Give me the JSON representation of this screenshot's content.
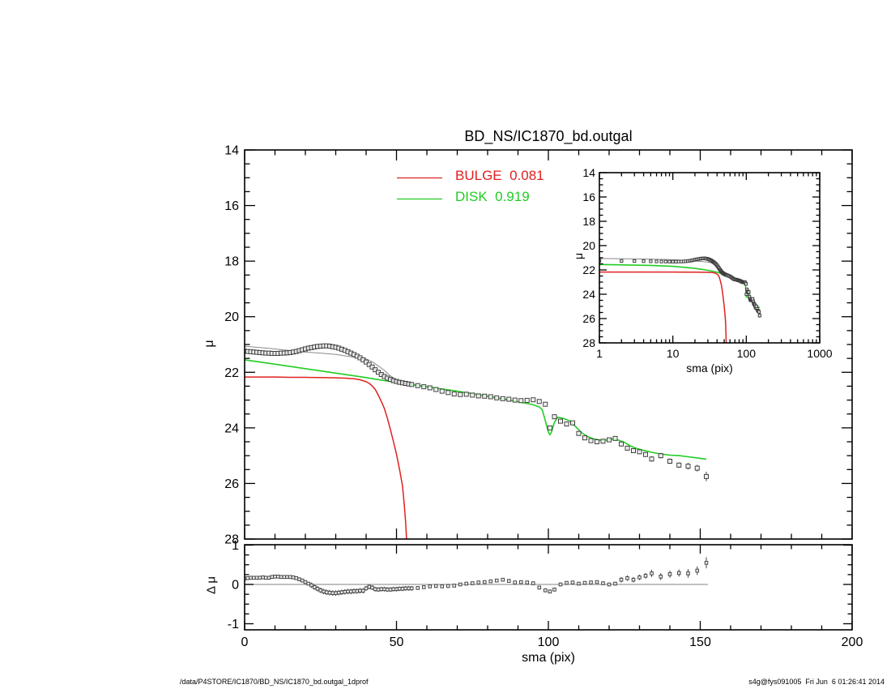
{
  "title": "BD_NS/IC1870_bd.outgal",
  "legend": {
    "bulge_label": "BULGE  0.081",
    "disk_label": "DISK  0.919"
  },
  "axes": {
    "main_ylabel": "μ",
    "residual_ylabel": "Δ μ",
    "xlabel": "sma (pix)",
    "inset_xlabel": "sma (pix)",
    "inset_ylabel": "μ"
  },
  "footer": {
    "left": "/data/P4STORE/IC1870/BD_NS/IC1870_bd.outgal_1dprof",
    "right": "s4g@fys091005  Fri Jun  6 01:26:41 2014"
  },
  "colors": {
    "bulge": "#e02020",
    "disk": "#22cc22",
    "total_model": "#8a8a8a",
    "data": "#3d3d3d",
    "zero_line": "#9a9a9a",
    "axis": "#000000"
  },
  "chart_data": [
    {
      "id": "main_profile",
      "type": "scatter",
      "title": "BD_NS/IC1870_bd.outgal",
      "xlabel": "",
      "ylabel": "μ",
      "xlim": [
        0,
        200
      ],
      "ylim": [
        28,
        14
      ],
      "y_inverted": true,
      "grid": false,
      "x_major_ticks": [
        0,
        50,
        100,
        150,
        200
      ],
      "x_minor_step": 10,
      "x_tick_labels_visible": false,
      "y_major_ticks": [
        14,
        16,
        18,
        20,
        22,
        24,
        26,
        28
      ],
      "y_minor_step": 0.5,
      "legend": {
        "position": "top-left-inside",
        "entries": [
          {
            "label": "BULGE  0.081",
            "color": "#e02020"
          },
          {
            "label": "DISK  0.919",
            "color": "#22cc22"
          }
        ]
      },
      "series": [
        {
          "name": "total_model",
          "kind": "line",
          "color": "#8a8a8a",
          "width": 1,
          "x": [
            0,
            5,
            10,
            15,
            20,
            25,
            30,
            35,
            40,
            42,
            44,
            46,
            48,
            50,
            52,
            55,
            60
          ],
          "y": [
            21.06,
            21.11,
            21.16,
            21.22,
            21.27,
            21.31,
            21.36,
            21.44,
            21.52,
            21.62,
            21.77,
            21.93,
            22.13,
            22.27,
            22.36,
            22.45,
            22.52
          ]
        },
        {
          "name": "disk",
          "kind": "line",
          "color": "#22cc22",
          "width": 1.6,
          "x": [
            0,
            5,
            10,
            15,
            20,
            25,
            30,
            35,
            40,
            45,
            50,
            55,
            60,
            65,
            70,
            75,
            80,
            85,
            90,
            93,
            95,
            97,
            98,
            99,
            100,
            100.5,
            101,
            102,
            103,
            105,
            107,
            109,
            111,
            113,
            115,
            117,
            119,
            121,
            123,
            125,
            127,
            129,
            131,
            134,
            137,
            140,
            143,
            146,
            149,
            152
          ],
          "y": [
            21.55,
            21.63,
            21.71,
            21.79,
            21.87,
            21.95,
            22.03,
            22.11,
            22.19,
            22.28,
            22.36,
            22.44,
            22.52,
            22.6,
            22.68,
            22.77,
            22.86,
            22.96,
            23.06,
            23.12,
            23.17,
            23.25,
            23.35,
            23.75,
            24.15,
            24.25,
            24.15,
            23.8,
            23.62,
            23.66,
            23.75,
            23.96,
            24.18,
            24.32,
            24.4,
            24.44,
            24.44,
            24.4,
            24.44,
            24.52,
            24.65,
            24.74,
            24.8,
            24.88,
            24.94,
            24.98,
            25.0,
            25.04,
            25.08,
            25.13
          ]
        },
        {
          "name": "bulge",
          "kind": "line",
          "color": "#e02020",
          "width": 1.5,
          "x": [
            0,
            5,
            10,
            15,
            20,
            25,
            30,
            33,
            36,
            38,
            40,
            41,
            42,
            43,
            44,
            45,
            46,
            47,
            48,
            49,
            50,
            51,
            52,
            52.5,
            53,
            53.4
          ],
          "y": [
            22.17,
            22.17,
            22.17,
            22.18,
            22.18,
            22.19,
            22.2,
            22.21,
            22.23,
            22.27,
            22.34,
            22.4,
            22.49,
            22.62,
            22.82,
            23.05,
            23.3,
            23.66,
            24.06,
            24.5,
            24.95,
            25.5,
            26.1,
            26.7,
            27.4,
            28.2
          ]
        },
        {
          "name": "observed",
          "kind": "scatter",
          "marker": "open-square",
          "color": "#3d3d3d",
          "x": [
            0,
            1,
            2,
            3,
            4,
            5,
            6,
            7,
            8,
            9,
            10,
            11,
            12,
            13,
            14,
            15,
            16,
            17,
            18,
            19,
            20,
            21,
            22,
            23,
            24,
            25,
            26,
            27,
            28,
            29,
            30,
            31,
            32,
            33,
            34,
            35,
            36,
            37,
            38,
            39,
            40,
            41,
            42,
            43,
            44,
            45,
            46,
            47,
            48,
            49,
            50,
            51,
            52,
            53,
            54,
            55,
            57,
            59,
            61,
            63,
            65,
            67,
            69,
            71,
            73,
            75,
            77,
            79,
            81,
            83,
            85,
            87,
            89,
            91,
            93,
            95,
            97,
            99,
            100.5,
            102,
            104,
            106,
            108,
            110,
            112,
            114,
            116,
            118,
            120,
            122,
            124,
            126,
            128,
            130,
            132,
            134,
            137,
            140,
            143,
            146,
            149,
            152
          ],
          "y": [
            21.24,
            21.25,
            21.26,
            21.27,
            21.28,
            21.29,
            21.3,
            21.31,
            21.31,
            21.32,
            21.32,
            21.32,
            21.31,
            21.31,
            21.3,
            21.29,
            21.27,
            21.25,
            21.22,
            21.19,
            21.16,
            21.13,
            21.11,
            21.09,
            21.07,
            21.06,
            21.05,
            21.05,
            21.06,
            21.08,
            21.1,
            21.13,
            21.17,
            21.21,
            21.26,
            21.31,
            21.36,
            21.42,
            21.48,
            21.55,
            21.63,
            21.72,
            21.81,
            21.91,
            22.0,
            22.08,
            22.15,
            22.21,
            22.26,
            22.3,
            22.33,
            22.36,
            22.38,
            22.4,
            22.42,
            22.44,
            22.48,
            22.52,
            22.56,
            22.62,
            22.68,
            22.73,
            22.78,
            22.8,
            22.79,
            22.82,
            22.85,
            22.86,
            22.88,
            22.92,
            22.95,
            22.97,
            23.0,
            23.02,
            23.01,
            22.99,
            23.05,
            23.15,
            24.0,
            23.6,
            23.76,
            23.86,
            23.82,
            24.2,
            24.36,
            24.46,
            24.5,
            24.48,
            24.43,
            24.38,
            24.58,
            24.73,
            24.82,
            24.86,
            24.96,
            25.12,
            25.0,
            25.2,
            25.34,
            25.38,
            25.45,
            25.75
          ],
          "yerr": [
            0.02,
            0.02,
            0.02,
            0.02,
            0.02,
            0.02,
            0.02,
            0.02,
            0.02,
            0.02,
            0.02,
            0.02,
            0.02,
            0.02,
            0.02,
            0.02,
            0.02,
            0.02,
            0.02,
            0.02,
            0.02,
            0.02,
            0.02,
            0.02,
            0.02,
            0.02,
            0.02,
            0.02,
            0.02,
            0.02,
            0.02,
            0.02,
            0.02,
            0.02,
            0.02,
            0.02,
            0.02,
            0.02,
            0.02,
            0.02,
            0.05,
            0.05,
            0.05,
            0.05,
            0.05,
            0.05,
            0.05,
            0.05,
            0.05,
            0.05,
            0.05,
            0.05,
            0.05,
            0.05,
            0.05,
            0.05,
            0.03,
            0.03,
            0.03,
            0.03,
            0.03,
            0.03,
            0.03,
            0.03,
            0.03,
            0.03,
            0.03,
            0.03,
            0.03,
            0.03,
            0.03,
            0.03,
            0.03,
            0.03,
            0.03,
            0.03,
            0.04,
            0.04,
            0.04,
            0.04,
            0.04,
            0.04,
            0.04,
            0.04,
            0.04,
            0.04,
            0.04,
            0.04,
            0.04,
            0.04,
            0.07,
            0.07,
            0.07,
            0.07,
            0.07,
            0.1,
            0.1,
            0.1,
            0.1,
            0.12,
            0.12,
            0.17
          ]
        }
      ]
    },
    {
      "id": "inset_log_profile",
      "type": "scatter",
      "xscale": "log",
      "xlabel": "sma (pix)",
      "ylabel": "μ",
      "xlim": [
        1,
        1000
      ],
      "ylim": [
        28,
        14
      ],
      "y_inverted": true,
      "x_major_ticks": [
        1,
        10,
        100,
        1000
      ],
      "y_major_ticks": [
        14,
        16,
        18,
        20,
        22,
        24,
        26,
        28
      ],
      "y_minor_step": 0.5,
      "series_ref": "main_profile"
    },
    {
      "id": "residuals",
      "type": "scatter",
      "xlabel": "sma (pix)",
      "ylabel": "Δ μ",
      "xlim": [
        0,
        200
      ],
      "ylim": [
        -1,
        1
      ],
      "x_major_ticks": [
        0,
        50,
        100,
        150,
        200
      ],
      "x_minor_step": 10,
      "y_major_ticks": [
        -1,
        0,
        1
      ],
      "y_minor_step": 0.25,
      "zero_line": {
        "x_start": 0,
        "x_end": 152.5,
        "color": "#9a9a9a"
      },
      "series": [
        {
          "name": "residual",
          "kind": "scatter",
          "marker": "open-square",
          "color": "#444444",
          "x": [
            0,
            1,
            2,
            3,
            4,
            5,
            6,
            7,
            8,
            9,
            10,
            11,
            12,
            13,
            14,
            15,
            16,
            17,
            18,
            19,
            20,
            21,
            22,
            23,
            24,
            25,
            26,
            27,
            28,
            29,
            30,
            31,
            32,
            33,
            34,
            35,
            36,
            37,
            38,
            39,
            40,
            41,
            42,
            43,
            44,
            45,
            46,
            47,
            48,
            49,
            50,
            51,
            52,
            53,
            54,
            55,
            57,
            59,
            61,
            63,
            65,
            67,
            69,
            71,
            73,
            75,
            77,
            79,
            81,
            83,
            85,
            87,
            89,
            91,
            93,
            95,
            97,
            99,
            100.5,
            102,
            104,
            106,
            108,
            110,
            112,
            114,
            116,
            118,
            120,
            122,
            124,
            126,
            128,
            130,
            132,
            134,
            137,
            140,
            143,
            146,
            149,
            152
          ],
          "y": [
            0.15,
            0.16,
            0.17,
            0.17,
            0.17,
            0.17,
            0.18,
            0.17,
            0.17,
            0.19,
            0.2,
            0.2,
            0.19,
            0.19,
            0.19,
            0.19,
            0.18,
            0.16,
            0.13,
            0.1,
            0.06,
            0.02,
            -0.02,
            -0.07,
            -0.11,
            -0.15,
            -0.18,
            -0.2,
            -0.21,
            -0.22,
            -0.22,
            -0.21,
            -0.2,
            -0.19,
            -0.18,
            -0.18,
            -0.17,
            -0.17,
            -0.16,
            -0.16,
            -0.1,
            -0.06,
            -0.08,
            -0.12,
            -0.13,
            -0.12,
            -0.12,
            -0.13,
            -0.13,
            -0.12,
            -0.12,
            -0.11,
            -0.11,
            -0.1,
            -0.1,
            -0.1,
            -0.09,
            -0.07,
            -0.05,
            -0.04,
            -0.05,
            -0.04,
            -0.03,
            0.0,
            0.02,
            0.03,
            0.05,
            0.06,
            0.08,
            0.1,
            0.12,
            0.09,
            0.05,
            0.06,
            0.05,
            0.03,
            -0.08,
            -0.15,
            -0.18,
            -0.13,
            0.0,
            0.04,
            0.05,
            0.02,
            0.04,
            0.05,
            0.06,
            0.03,
            0.0,
            0.02,
            0.12,
            0.16,
            0.12,
            0.18,
            0.22,
            0.28,
            0.2,
            0.26,
            0.29,
            0.28,
            0.35,
            0.55
          ],
          "yerr": [
            0.02,
            0.02,
            0.02,
            0.02,
            0.02,
            0.02,
            0.02,
            0.02,
            0.02,
            0.02,
            0.02,
            0.02,
            0.02,
            0.02,
            0.02,
            0.02,
            0.02,
            0.02,
            0.04,
            0.04,
            0.04,
            0.04,
            0.07,
            0.07,
            0.07,
            0.07,
            0.07,
            0.07,
            0.07,
            0.07,
            0.07,
            0.07,
            0.07,
            0.07,
            0.07,
            0.07,
            0.07,
            0.07,
            0.07,
            0.07,
            0.06,
            0.06,
            0.06,
            0.06,
            0.06,
            0.06,
            0.06,
            0.06,
            0.06,
            0.06,
            0.06,
            0.06,
            0.06,
            0.06,
            0.06,
            0.06,
            0.025,
            0.025,
            0.025,
            0.025,
            0.025,
            0.025,
            0.025,
            0.025,
            0.025,
            0.025,
            0.025,
            0.025,
            0.025,
            0.025,
            0.025,
            0.025,
            0.025,
            0.025,
            0.025,
            0.025,
            0.05,
            0.05,
            0.05,
            0.05,
            0.05,
            0.035,
            0.035,
            0.035,
            0.035,
            0.035,
            0.035,
            0.035,
            0.035,
            0.035,
            0.07,
            0.07,
            0.07,
            0.07,
            0.07,
            0.09,
            0.09,
            0.09,
            0.09,
            0.11,
            0.11,
            0.14
          ]
        }
      ]
    }
  ]
}
